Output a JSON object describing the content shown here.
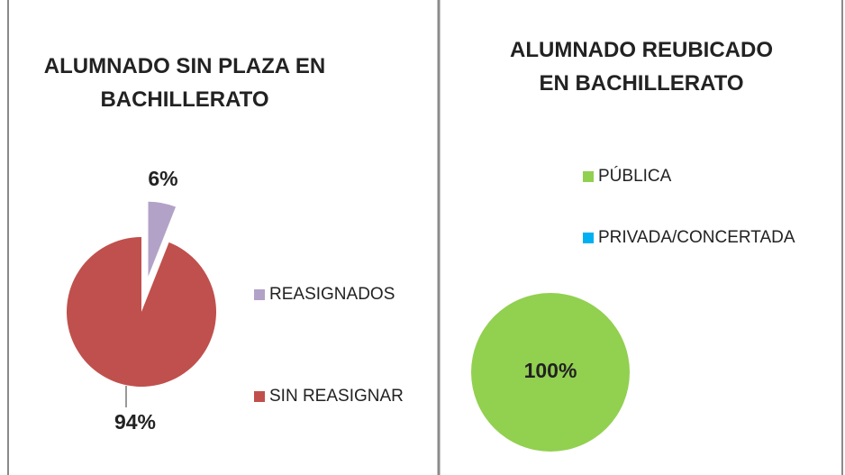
{
  "chart_data": [
    {
      "type": "pie",
      "title": "ALUMNADO SIN PLAZA EN BACHILLERATO",
      "categories": [
        "REASIGNADOS",
        "SIN REASIGNAR"
      ],
      "values": [
        6,
        94
      ],
      "value_labels": [
        "6%",
        "94%"
      ],
      "colors": [
        "#b3a2c7",
        "#c0504d"
      ],
      "exploded": [
        true,
        false
      ],
      "legend": "right"
    },
    {
      "type": "pie",
      "title": "ALUMNADO REUBICADO EN BACHILLERATO",
      "categories": [
        "PÚBLICA",
        "PRIVADA/CONCERTADA"
      ],
      "values": [
        100,
        0
      ],
      "value_labels": [
        "100%",
        null
      ],
      "colors": [
        "#92d050",
        "#00b0f0"
      ],
      "legend": "top"
    }
  ]
}
